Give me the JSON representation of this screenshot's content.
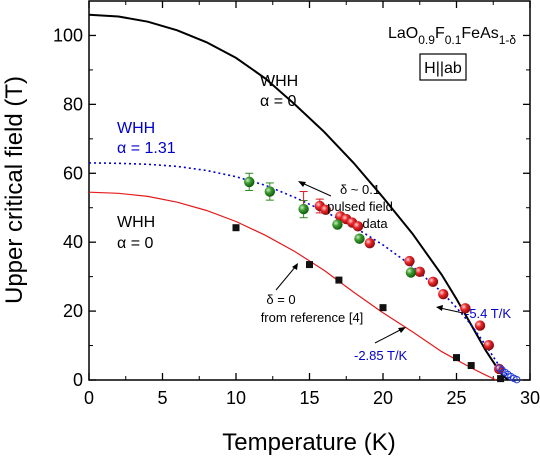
{
  "chart_data": {
    "type": "scatter",
    "xlabel": "Temperature (K)",
    "ylabel": "Upper critical field (T)",
    "xlim": [
      0,
      30
    ],
    "ylim": [
      0,
      110
    ],
    "xticks": [
      0,
      5,
      10,
      15,
      20,
      25,
      30
    ],
    "yticks": [
      0,
      20,
      40,
      60,
      80,
      100
    ],
    "grid": false,
    "series": [
      {
        "kind": "line",
        "color": "#000000",
        "style": "solid",
        "x": [
          0,
          2,
          4,
          6,
          8,
          10,
          12,
          14,
          16,
          18,
          20,
          22,
          24,
          25,
          26,
          27,
          28,
          28.5
        ],
        "y": [
          106,
          105.5,
          104,
          101.5,
          98,
          93.5,
          87.5,
          80,
          72,
          63,
          53,
          42.5,
          30.5,
          23.5,
          16,
          8.5,
          2,
          0
        ]
      },
      {
        "kind": "line",
        "color": "#0000cc",
        "style": "dotted",
        "x": [
          0,
          2,
          4,
          6,
          8,
          10,
          12,
          14,
          16,
          18,
          20,
          22,
          24,
          25,
          26,
          27,
          28,
          28.8
        ],
        "y": [
          63,
          62.9,
          62.6,
          62,
          60.8,
          59,
          56.5,
          53,
          49,
          44.5,
          39.2,
          33,
          25.5,
          21,
          16,
          10,
          3.5,
          0
        ]
      },
      {
        "kind": "line",
        "color": "#e41a1c",
        "style": "solid",
        "x": [
          0,
          2,
          4,
          6,
          8,
          10,
          12,
          14,
          16,
          18,
          20,
          22,
          24,
          26,
          27,
          27.7
        ],
        "y": [
          54.5,
          54.2,
          53.3,
          51.6,
          49.2,
          46,
          42,
          37.3,
          31.8,
          25.5,
          19.5,
          14,
          8.2,
          3.5,
          1.4,
          0
        ]
      },
      {
        "kind": "scatter",
        "marker": "sphere",
        "color": "#d7191c",
        "x": [
          15.7,
          16.1,
          17.1,
          17.5,
          17.9,
          18.3,
          19.1,
          21.8,
          22.5,
          23.4,
          24.1,
          25.6,
          26.6,
          27.2,
          27.9
        ],
        "y": [
          50.5,
          49.4,
          47.5,
          46.7,
          45.7,
          44.6,
          39.7,
          34.5,
          31.4,
          28.5,
          24.9,
          20.8,
          15.8,
          10.1,
          3.2
        ]
      },
      {
        "kind": "scatter",
        "marker": "sphere",
        "color": "#2e8b22",
        "x": [
          10.9,
          12.3,
          14.6,
          16.9,
          18.4,
          21.9
        ],
        "y": [
          57.5,
          54.7,
          49.6,
          45.1,
          41.0,
          31.2
        ]
      },
      {
        "kind": "scatter",
        "marker": "square",
        "color": "#111111",
        "x": [
          10,
          15,
          17,
          20,
          25,
          26,
          28
        ],
        "y": [
          44.2,
          33.5,
          29,
          21,
          6.5,
          4.2,
          0.4
        ]
      },
      {
        "kind": "scatter",
        "marker": "open-circle",
        "color": "#1e3ad6",
        "x": [
          27.9,
          28.1,
          28.3,
          28.5,
          28.7,
          28.9,
          29.1
        ],
        "y": [
          3.5,
          2.9,
          2.2,
          1.6,
          1.0,
          0.5,
          0.1
        ]
      }
    ],
    "error_bars": [
      {
        "x": 10.9,
        "y": 57.5,
        "err": 2.5,
        "color": "#2e8b22"
      },
      {
        "x": 12.3,
        "y": 54.7,
        "err": 2.5,
        "color": "#2e8b22"
      },
      {
        "x": 14.6,
        "y": 49.6,
        "err": 2.5,
        "color": "#2e8b22"
      },
      {
        "x": 14.6,
        "y": 52.2,
        "err": 2.5,
        "color": "#d7191c"
      },
      {
        "x": 15.7,
        "y": 50.5,
        "err": 2,
        "color": "#d7191c"
      }
    ],
    "annotations": [
      {
        "id": "formula",
        "text_main": "LaO",
        "sub1": "0.9",
        "mid": "F",
        "sub2": "0.1",
        "tail": "FeAs",
        "sub3": "1-δ"
      },
      {
        "id": "field-box",
        "text": "H||ab"
      },
      {
        "id": "whh-black-1",
        "text": "WHH"
      },
      {
        "id": "whh-black-2",
        "text": "α = 0"
      },
      {
        "id": "whh-blue-1",
        "text": "WHH"
      },
      {
        "id": "whh-blue-2",
        "text": "α = 1.31"
      },
      {
        "id": "whh-red-1",
        "text": "WHH"
      },
      {
        "id": "whh-red-2",
        "text": "α = 0"
      },
      {
        "id": "delta-01-1",
        "text": "δ ~ 0.1"
      },
      {
        "id": "delta-01-2",
        "text": "pulsed field"
      },
      {
        "id": "delta-01-3",
        "text": "data"
      },
      {
        "id": "delta-0-1",
        "text": "δ = 0"
      },
      {
        "id": "delta-0-2",
        "text": "from reference [4]"
      },
      {
        "id": "slope-54",
        "text": "-5.4 T/K"
      },
      {
        "id": "slope-285",
        "text": "-2.85 T/K"
      }
    ],
    "colors": {
      "blue_text": "#0000cc",
      "axis": "#000000"
    }
  }
}
